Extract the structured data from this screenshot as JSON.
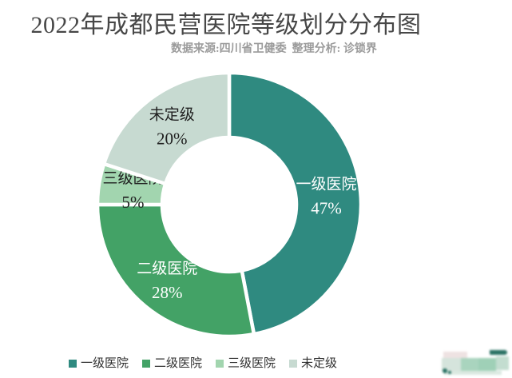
{
  "header": {
    "title": "2022年成都民营医院等级划分分布图",
    "subtitle": "数据来源:四川省卫健委  整理分析: 诊锁界"
  },
  "chart_data": {
    "type": "pie",
    "subtype": "donut",
    "title": "2022年成都民营医院等级划分分布图",
    "source_note": "数据来源:四川省卫健委  整理分析: 诊锁界",
    "start_angle_deg": 0,
    "direction": "clockwise",
    "slices": [
      {
        "label": "一级医院",
        "value": 47,
        "pct_text": "47%",
        "color": "#2f8a80",
        "label_color": "#ffffff"
      },
      {
        "label": "二级医院",
        "value": 28,
        "pct_text": "28%",
        "color": "#43a266",
        "label_color": "#ffffff"
      },
      {
        "label": "三级医院",
        "value": 5,
        "pct_text": "5%",
        "color": "#a2d5af",
        "label_color": "#1f1f1f"
      },
      {
        "label": "未定级",
        "value": 20,
        "pct_text": "20%",
        "color": "#c7dad1",
        "label_color": "#1f1f1f"
      }
    ],
    "legend": [
      "一级医院",
      "二级医院",
      "三级医院",
      "未定级"
    ],
    "legend_position": "bottom",
    "gap_color": "#ffffff"
  }
}
